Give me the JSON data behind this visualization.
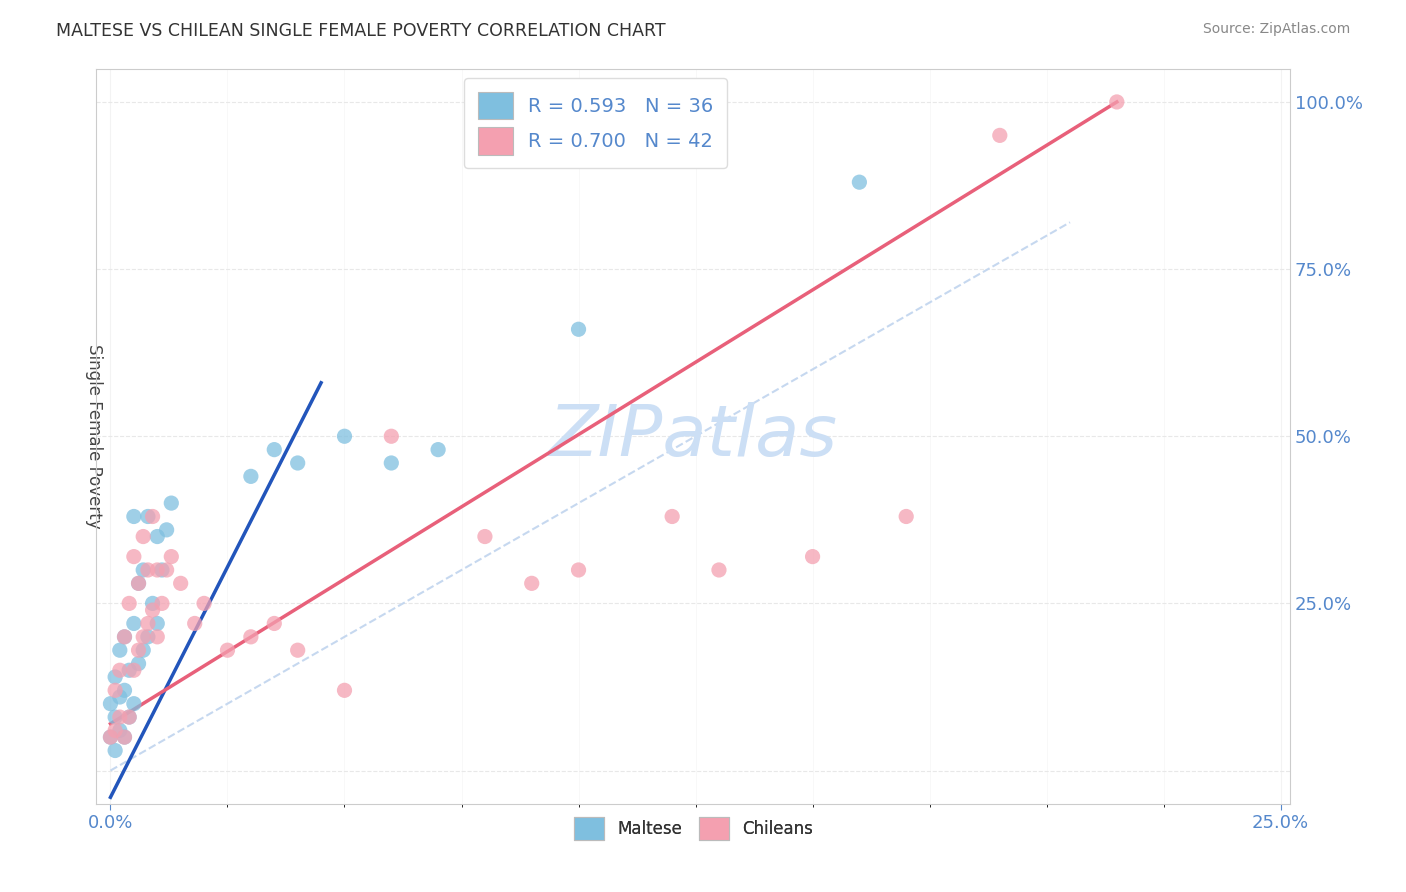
{
  "title": "MALTESE VS CHILEAN SINGLE FEMALE POVERTY CORRELATION CHART",
  "source": "Source: ZipAtlas.com",
  "ylabel": "Single Female Poverty",
  "maltese_color": "#7fbfdf",
  "chilean_color": "#f4a0b0",
  "maltese_line_color": "#2255bb",
  "chilean_line_color": "#e8607a",
  "diag_color": "#c0d4ee",
  "maltese_R": 0.593,
  "maltese_N": 36,
  "chilean_R": 0.7,
  "chilean_N": 42,
  "watermark_color": "#ccdff5",
  "tick_color": "#5588cc",
  "grid_color": "#e8e8e8",
  "xlim": [
    0.0,
    0.25
  ],
  "ylim": [
    -0.05,
    1.05
  ],
  "ytick_positions": [
    0.0,
    0.25,
    0.5,
    0.75,
    1.0
  ],
  "ytick_labels": [
    "",
    "25.0%",
    "50.0%",
    "75.0%",
    "100.0%"
  ],
  "maltese_x": [
    0.0,
    0.0,
    0.001,
    0.001,
    0.001,
    0.002,
    0.002,
    0.002,
    0.003,
    0.003,
    0.003,
    0.004,
    0.004,
    0.005,
    0.005,
    0.005,
    0.006,
    0.006,
    0.007,
    0.007,
    0.008,
    0.008,
    0.009,
    0.01,
    0.01,
    0.011,
    0.012,
    0.013,
    0.03,
    0.035,
    0.04,
    0.05,
    0.06,
    0.07,
    0.1,
    0.16
  ],
  "maltese_y": [
    0.05,
    0.1,
    0.03,
    0.08,
    0.14,
    0.06,
    0.11,
    0.18,
    0.05,
    0.12,
    0.2,
    0.08,
    0.15,
    0.1,
    0.22,
    0.38,
    0.16,
    0.28,
    0.18,
    0.3,
    0.2,
    0.38,
    0.25,
    0.22,
    0.35,
    0.3,
    0.36,
    0.4,
    0.44,
    0.48,
    0.46,
    0.5,
    0.46,
    0.48,
    0.66,
    0.88
  ],
  "chilean_x": [
    0.0,
    0.001,
    0.001,
    0.002,
    0.002,
    0.003,
    0.003,
    0.004,
    0.004,
    0.005,
    0.005,
    0.006,
    0.006,
    0.007,
    0.007,
    0.008,
    0.008,
    0.009,
    0.009,
    0.01,
    0.01,
    0.011,
    0.012,
    0.013,
    0.015,
    0.018,
    0.02,
    0.025,
    0.03,
    0.035,
    0.04,
    0.05,
    0.06,
    0.08,
    0.09,
    0.1,
    0.12,
    0.13,
    0.15,
    0.17,
    0.19,
    0.215
  ],
  "chilean_y": [
    0.05,
    0.06,
    0.12,
    0.08,
    0.15,
    0.05,
    0.2,
    0.08,
    0.25,
    0.15,
    0.32,
    0.18,
    0.28,
    0.2,
    0.35,
    0.22,
    0.3,
    0.24,
    0.38,
    0.2,
    0.3,
    0.25,
    0.3,
    0.32,
    0.28,
    0.22,
    0.25,
    0.18,
    0.2,
    0.22,
    0.18,
    0.12,
    0.5,
    0.35,
    0.28,
    0.3,
    0.38,
    0.3,
    0.32,
    0.38,
    0.95,
    1.0
  ],
  "maltese_line_x": [
    0.0,
    0.045
  ],
  "maltese_line_y": [
    -0.04,
    0.58
  ],
  "chilean_line_x": [
    0.0,
    0.215
  ],
  "chilean_line_y": [
    0.07,
    1.0
  ],
  "diag_line_x": [
    0.0,
    0.205
  ],
  "diag_line_y": [
    0.0,
    0.82
  ]
}
